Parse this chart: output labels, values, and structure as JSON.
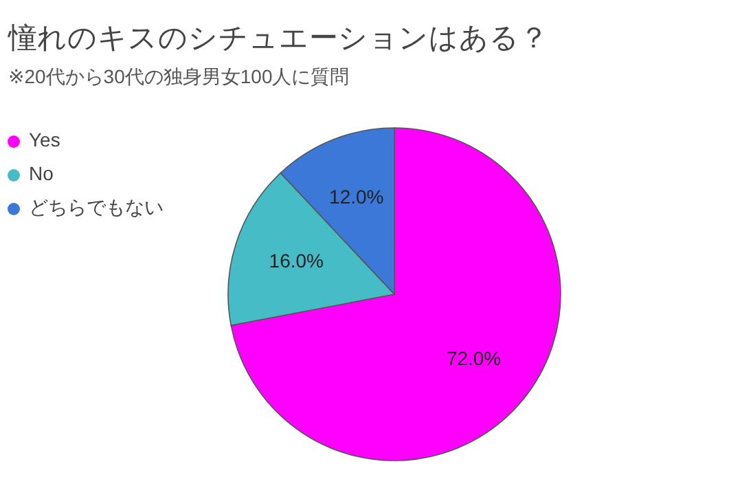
{
  "chart_data": {
    "type": "pie",
    "title": "憧れのキスのシチュエーションはある？",
    "subtitle": "※20代から30代の独身男女100人に質問",
    "categories": [
      "Yes",
      "No",
      "どちらでもない"
    ],
    "values": [
      72,
      16,
      12
    ],
    "colors": [
      "#ff00ff",
      "#46bdc6",
      "#3c78d8"
    ],
    "value_labels": [
      "72.0%",
      "16.0%",
      "12.0%"
    ],
    "legend": "top left"
  }
}
